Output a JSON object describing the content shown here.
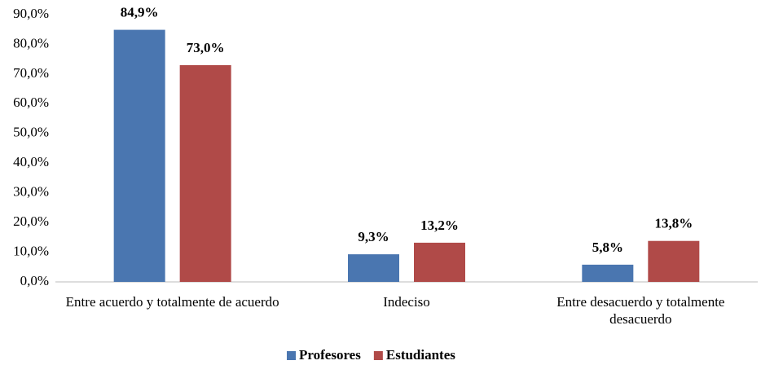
{
  "chart_data": {
    "type": "bar",
    "categories": [
      "Entre acuerdo y totalmente de acuerdo",
      "Indeciso",
      "Entre desacuerdo y totalmente desacuerdo"
    ],
    "series": [
      {
        "name": "Profesores",
        "color": "#4a76b0",
        "values": [
          84.9,
          9.3,
          5.8
        ],
        "value_labels": [
          "84,9%",
          "9,3%",
          "5,8%"
        ]
      },
      {
        "name": "Estudiantes",
        "color": "#b04a48",
        "values": [
          73.0,
          13.2,
          13.8
        ],
        "value_labels": [
          "73,0%",
          "13,2%",
          "13,8%"
        ]
      }
    ],
    "ylim": [
      0,
      90
    ],
    "yticks": [
      {
        "value": 0,
        "label": "0,0%"
      },
      {
        "value": 10,
        "label": "10,0%"
      },
      {
        "value": 20,
        "label": "20,0%"
      },
      {
        "value": 30,
        "label": "30,0%"
      },
      {
        "value": 40,
        "label": "40,0%"
      },
      {
        "value": 50,
        "label": "50,0%"
      },
      {
        "value": 60,
        "label": "60,0%"
      },
      {
        "value": 70,
        "label": "70,0%"
      },
      {
        "value": 80,
        "label": "80,0%"
      },
      {
        "value": 90,
        "label": "90,0%"
      }
    ],
    "legend": "bottom",
    "grid": false
  }
}
